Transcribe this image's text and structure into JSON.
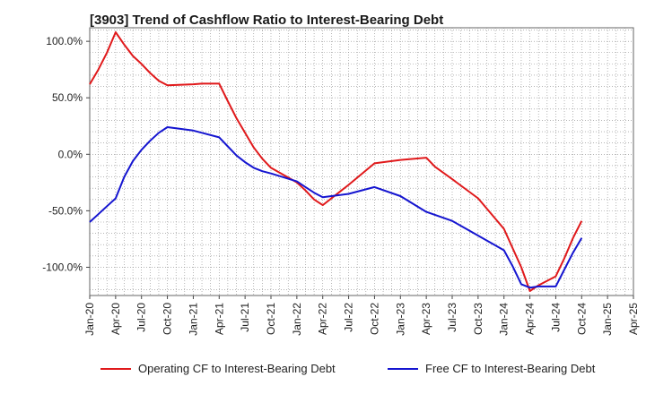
{
  "title": "[3903]  Trend of Cashflow Ratio to Interest-Bearing Debt",
  "chart_data": {
    "type": "line",
    "title": "[3903]  Trend of Cashflow Ratio to Interest-Bearing Debt",
    "xlabel": "",
    "ylabel": "",
    "x_ticks": [
      "Jan-20",
      "Apr-20",
      "Jul-20",
      "Oct-20",
      "Jan-21",
      "Apr-21",
      "Jul-21",
      "Oct-21",
      "Jan-22",
      "Apr-22",
      "Jul-22",
      "Oct-22",
      "Jan-23",
      "Apr-23",
      "Jul-23",
      "Oct-23",
      "Jan-24",
      "Apr-24",
      "Jul-24",
      "Oct-24",
      "Jan-25",
      "Apr-25"
    ],
    "y_ticks": [
      "100.0%",
      "50.0%",
      "0.0%",
      "-50.0%",
      "-100.0%"
    ],
    "y_tick_values": [
      100,
      50,
      0,
      -50,
      -100
    ],
    "ylim": [
      -125,
      112
    ],
    "xlim": [
      "Jan-20",
      "Apr-25"
    ],
    "grid": true,
    "legend_position": "bottom",
    "series": [
      {
        "name": "Operating CF to Interest-Bearing Debt",
        "color": "#e0191b",
        "x": [
          "Jan-20",
          "Feb-20",
          "Mar-20",
          "Apr-20",
          "May-20",
          "Jun-20",
          "Jul-20",
          "Aug-20",
          "Sep-20",
          "Oct-20",
          "Jan-21",
          "Feb-21",
          "Apr-21",
          "May-21",
          "Jun-21",
          "Jul-21",
          "Aug-21",
          "Sep-21",
          "Oct-21",
          "Jan-22",
          "Feb-22",
          "Mar-22",
          "Apr-22",
          "Jul-22",
          "Oct-22",
          "Jan-23",
          "Apr-23",
          "May-23",
          "Jul-23",
          "Oct-23",
          "Jan-24",
          "Feb-24",
          "Mar-24",
          "Apr-24",
          "May-24",
          "Jul-24",
          "Aug-24",
          "Sep-24",
          "Oct-24"
        ],
        "values": [
          62,
          75,
          90,
          108,
          97,
          87,
          80,
          72,
          65,
          61,
          62,
          62.5,
          62.5,
          47,
          32,
          19,
          6,
          -4,
          -12,
          -25,
          -32,
          -40,
          -45,
          -27,
          -8,
          -5,
          -3,
          -11,
          -22,
          -39,
          -66,
          -83,
          -100,
          -121,
          -116,
          -108,
          -92,
          -74,
          -59
        ]
      },
      {
        "name": "Free CF to Interest-Bearing Debt",
        "color": "#1515d0",
        "x": [
          "Jan-20",
          "Feb-20",
          "Mar-20",
          "Apr-20",
          "May-20",
          "Jun-20",
          "Jul-20",
          "Aug-20",
          "Sep-20",
          "Oct-20",
          "Jan-21",
          "Feb-21",
          "Apr-21",
          "May-21",
          "Jun-21",
          "Jul-21",
          "Aug-21",
          "Sep-21",
          "Oct-21",
          "Jan-22",
          "Feb-22",
          "Mar-22",
          "Apr-22",
          "Jul-22",
          "Oct-22",
          "Jan-23",
          "Apr-23",
          "Jul-23",
          "Oct-23",
          "Jan-24",
          "Feb-24",
          "Mar-24",
          "Apr-24",
          "May-24",
          "Jul-24",
          "Aug-24",
          "Sep-24",
          "Oct-24"
        ],
        "values": [
          -60,
          -53,
          -46,
          -39,
          -20,
          -6,
          4,
          12,
          19,
          24,
          21,
          19,
          15,
          7,
          -1,
          -7,
          -12,
          -15,
          -17,
          -24,
          -29,
          -34,
          -38,
          -35,
          -29,
          -37,
          -51,
          -59,
          -72,
          -85,
          -99,
          -115,
          -118,
          -117,
          -117,
          -102,
          -87,
          -74
        ]
      }
    ]
  }
}
